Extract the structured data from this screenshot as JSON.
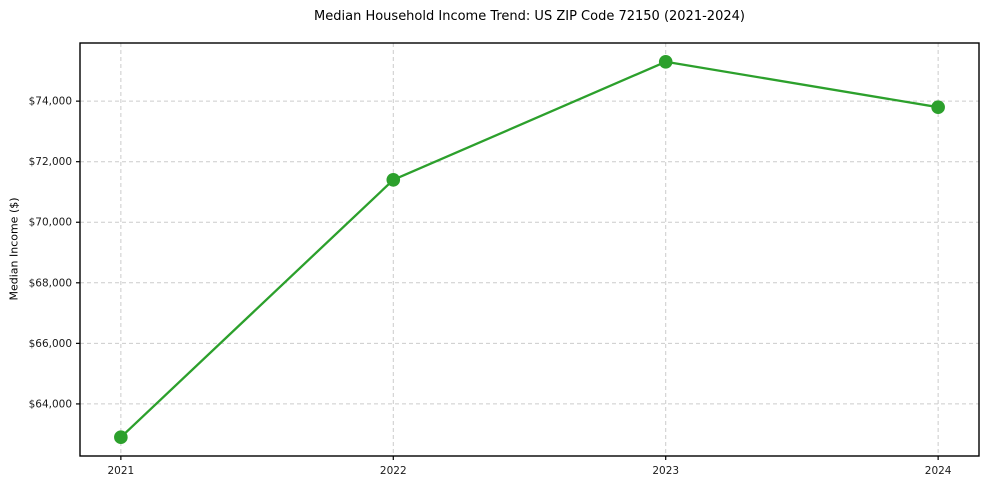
{
  "chart_data": {
    "type": "line",
    "title": "Median Household Income Trend: US ZIP Code 72150 (2021-2024)",
    "xlabel": "",
    "ylabel": "Median Income ($)",
    "series": [
      {
        "name": "Median Household Income",
        "x": [
          2021,
          2022,
          2023,
          2024
        ],
        "values": [
          62900,
          71400,
          75300,
          73800
        ]
      }
    ],
    "x": [
      2021,
      2022,
      2023,
      2024
    ],
    "values": [
      62900,
      71400,
      75300,
      73800
    ],
    "xlim": [
      2020.85,
      2024.15
    ],
    "ylim": [
      62280,
      75920
    ],
    "xticks": [
      {
        "value": 2021,
        "label": "2021"
      },
      {
        "value": 2022,
        "label": "2022"
      },
      {
        "value": 2023,
        "label": "2023"
      },
      {
        "value": 2024,
        "label": "2024"
      }
    ],
    "yticks": [
      {
        "value": 64000,
        "label": "$64,000"
      },
      {
        "value": 66000,
        "label": "$66,000"
      },
      {
        "value": 68000,
        "label": "$68,000"
      },
      {
        "value": 70000,
        "label": "$70,000"
      },
      {
        "value": 72000,
        "label": "$72,000"
      },
      {
        "value": 74000,
        "label": "$74,000"
      }
    ],
    "grid": true,
    "grid_style": "dashed",
    "legend": "none",
    "colors": {
      "line": "#2ca02c",
      "marker": "#2ca02c",
      "grid": "#cccccc",
      "axis": "#000000",
      "background": "#ffffff"
    },
    "marker": "circle",
    "marker_radius": 6.8
  }
}
